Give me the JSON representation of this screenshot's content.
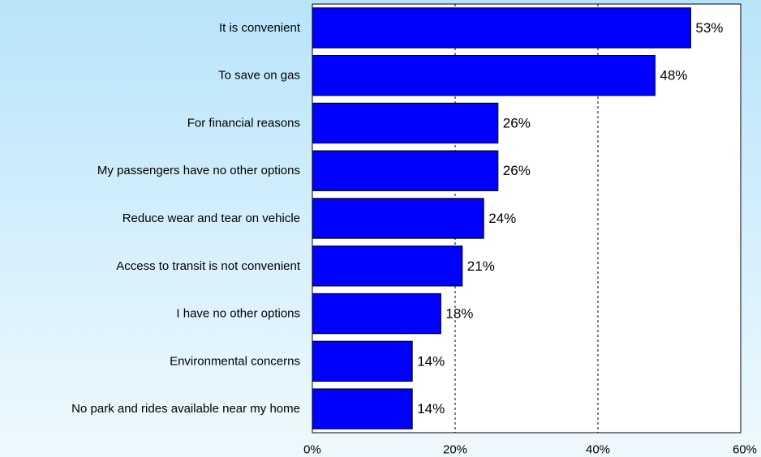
{
  "chart_data": {
    "type": "bar",
    "orientation": "horizontal",
    "categories": [
      "It is convenient",
      "To save on gas",
      "For financial reasons",
      "My passengers have no other options",
      "Reduce wear and tear on vehicle",
      "Access to transit is not convenient",
      "I have no other options",
      "Environmental concerns",
      "No park and rides available near my home"
    ],
    "values": [
      53,
      48,
      26,
      26,
      24,
      21,
      18,
      14,
      14
    ],
    "value_labels": [
      "53%",
      "48%",
      "26%",
      "26%",
      "24%",
      "21%",
      "18%",
      "14%",
      "14%"
    ],
    "xlim": [
      0,
      60
    ],
    "xticks": [
      0,
      20,
      40,
      60
    ],
    "xtick_labels": [
      "0%",
      "20%",
      "40%",
      "60%"
    ],
    "grid": "vertical dashed",
    "legend": "none",
    "title": "",
    "xlabel": "",
    "ylabel": "",
    "colors": {
      "bar_fill": "#0000ff",
      "bar_stroke": "#000000",
      "plot_background": "#ffffff",
      "grid": "#000000"
    }
  }
}
